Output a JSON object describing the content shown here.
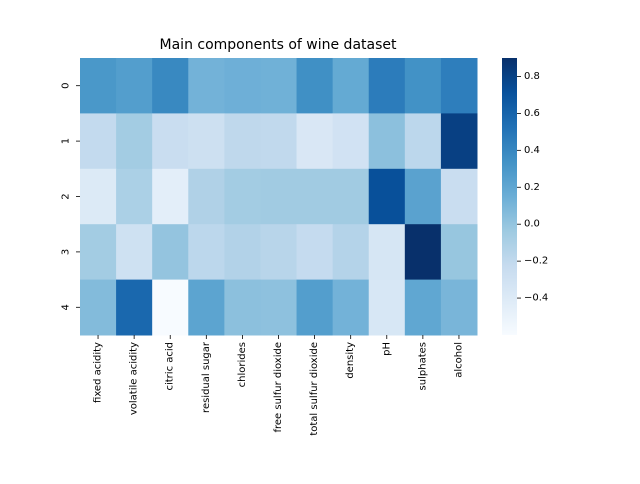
{
  "chart_data": {
    "type": "heatmap",
    "title": "Main components of wine dataset",
    "xlabel": "",
    "ylabel": "",
    "rows": [
      "0",
      "1",
      "2",
      "3",
      "4"
    ],
    "columns": [
      "fixed acidity",
      "volatile acidity",
      "citric acid",
      "residual sugar",
      "chlorides",
      "free sulfur dioxide",
      "total sulfur dioxide",
      "density",
      "pH",
      "sulphates",
      "alcohol"
    ],
    "values": [
      [
        0.3,
        0.26,
        0.39,
        0.12,
        0.14,
        0.13,
        0.35,
        0.18,
        0.46,
        0.34,
        0.45
      ],
      [
        -0.21,
        -0.06,
        -0.25,
        -0.28,
        -0.19,
        -0.2,
        -0.37,
        -0.31,
        0.03,
        -0.18,
        0.81
      ],
      [
        -0.4,
        -0.1,
        -0.45,
        -0.12,
        -0.06,
        -0.05,
        -0.05,
        -0.05,
        0.72,
        0.23,
        -0.25
      ],
      [
        -0.06,
        -0.29,
        0.0,
        -0.18,
        -0.13,
        -0.16,
        -0.22,
        -0.14,
        -0.35,
        0.9,
        -0.01
      ],
      [
        0.06,
        0.58,
        -0.6,
        0.22,
        0.03,
        0.02,
        0.26,
        0.12,
        -0.36,
        0.2,
        0.1
      ]
    ],
    "colorbar": {
      "min": -0.6,
      "max": 0.9,
      "ticks": [
        -0.4,
        -0.2,
        0.0,
        0.2,
        0.4,
        0.6,
        0.8
      ],
      "tick_labels": [
        "−0.4",
        "−0.2",
        "0.0",
        "0.2",
        "0.4",
        "0.6",
        "0.8"
      ]
    },
    "colormap": "Blues",
    "grid": false
  }
}
